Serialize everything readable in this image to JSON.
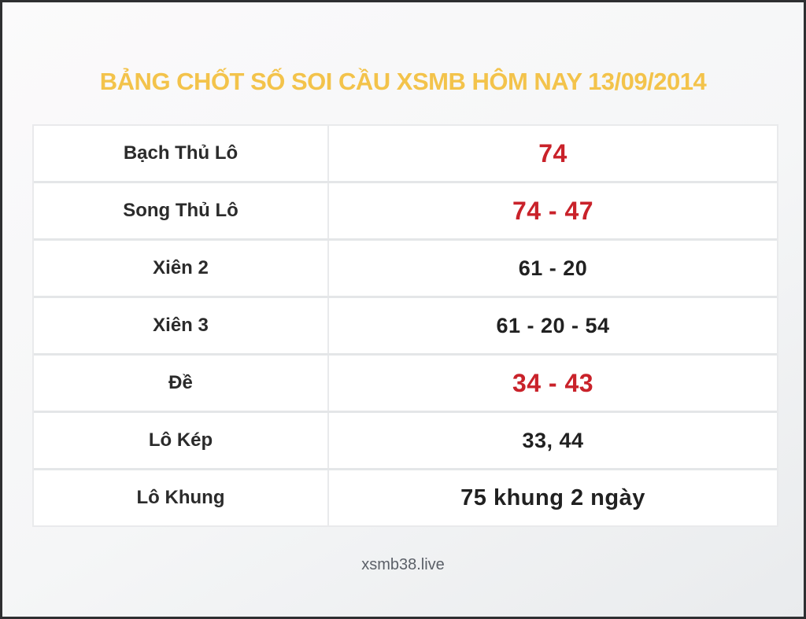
{
  "page": {
    "title": "BẢNG CHỐT SỐ SOI CẦU XSMB HÔM NAY 13/09/2014",
    "footer": "xsmb38.live"
  },
  "colors": {
    "title_gold": "#f3c34b",
    "value_red": "#c9222a",
    "text_dark": "#212121",
    "footer_gray": "#5b6068",
    "row_background": "#ffffff",
    "separator_gray": "#e4e6e8",
    "frame_dark": "#2e2f31"
  },
  "table": {
    "rows": [
      {
        "label": "Bạch Thủ Lô",
        "value": "74",
        "value_class": "cell-value val-red"
      },
      {
        "label": "Song Thủ Lô",
        "value": "74 - 47",
        "value_class": "cell-value val-red"
      },
      {
        "label": "Xiên 2",
        "value": "61 - 20",
        "value_class": "cell-value val-dark"
      },
      {
        "label": "Xiên 3",
        "value": "61 - 20 - 54",
        "value_class": "cell-value val-dark"
      },
      {
        "label": "Đề",
        "value": "34 - 43",
        "value_class": "cell-value val-red"
      },
      {
        "label": "Lô Kép",
        "value": "33, 44",
        "value_class": "cell-value val-dark"
      },
      {
        "label": "Lô Khung",
        "value": "75 khung 2 ngày",
        "value_class": "cell-value val-dark val-lg"
      }
    ]
  }
}
